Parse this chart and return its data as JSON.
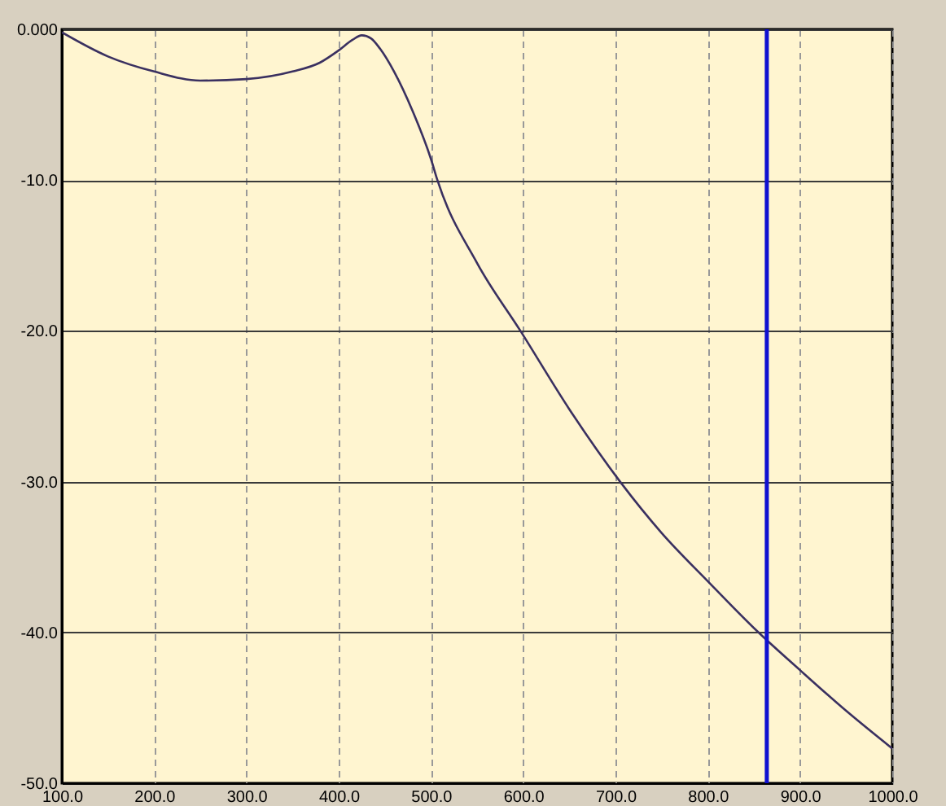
{
  "chart_data": {
    "type": "line",
    "x": [
      100,
      150,
      200,
      250,
      300,
      350,
      380,
      400,
      415,
      425,
      435,
      445,
      460,
      480,
      500,
      507,
      550,
      597,
      650,
      705,
      750,
      800,
      855,
      900,
      950,
      1000
    ],
    "series": [
      {
        "color": "#3a3060",
        "values": [
          -0.2,
          -1.8,
          -2.8,
          -3.4,
          -3.3,
          -2.8,
          -2.2,
          -1.4,
          -0.7,
          -0.4,
          -0.6,
          -1.3,
          -2.8,
          -5.4,
          -8.6,
          -10,
          -15.5,
          -20,
          -25.2,
          -30,
          -33.4,
          -36.6,
          -40,
          -42.5,
          -45.2,
          -47.7
        ]
      }
    ],
    "xlim": [
      100,
      1000
    ],
    "ylim": [
      -50,
      0
    ],
    "xticks": [
      {
        "value": 100,
        "label": "100.0"
      },
      {
        "value": 200,
        "label": "200.0"
      },
      {
        "value": 300,
        "label": "300.0"
      },
      {
        "value": 400,
        "label": "400.0"
      },
      {
        "value": 500,
        "label": "500.0"
      },
      {
        "value": 600,
        "label": "600.0"
      },
      {
        "value": 700,
        "label": "700.0"
      },
      {
        "value": 800,
        "label": "800.0"
      },
      {
        "value": 900,
        "label": "900.0"
      },
      {
        "value": 1000,
        "label": "1000.0"
      }
    ],
    "yticks": [
      {
        "value": -50,
        "label": "-50.0"
      },
      {
        "value": -40,
        "label": "-40.0"
      },
      {
        "value": -30,
        "label": "-30.0"
      },
      {
        "value": -20,
        "label": "-20.0"
      },
      {
        "value": -10,
        "label": "-10.0"
      },
      {
        "value": 0,
        "label": "0.000"
      }
    ],
    "grid": true,
    "ref_lines": [
      {
        "axis": "x",
        "value": 864,
        "color": "#1010d0"
      }
    ]
  }
}
